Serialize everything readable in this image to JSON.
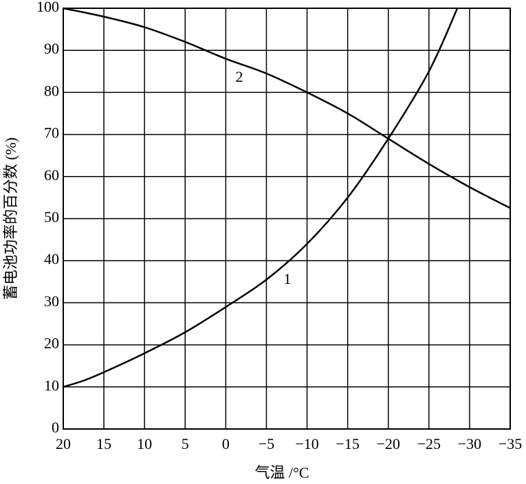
{
  "chart_data": {
    "type": "line",
    "x_label": "气温 /°C",
    "y_label": "蓄电池功率的百分数 (%)",
    "xlim": [
      20,
      -35
    ],
    "xticks": [
      20,
      15,
      10,
      5,
      0,
      {
        "value": -5,
        "label": "−5"
      },
      {
        "value": -10,
        "label": "−10"
      },
      {
        "value": -15,
        "label": "−15"
      },
      {
        "value": -20,
        "label": "−20"
      },
      {
        "value": -25,
        "label": "−25"
      },
      {
        "value": -30,
        "label": "−30"
      },
      {
        "value": -35,
        "label": "−35"
      }
    ],
    "ylim": [
      0,
      100
    ],
    "yticks": [
      0,
      10,
      20,
      30,
      40,
      50,
      60,
      70,
      80,
      90,
      100
    ],
    "grid": true,
    "series": [
      {
        "name": "1",
        "color": "#000000",
        "x": [
          20,
          17.5,
          15,
          10,
          5,
          0,
          -5,
          -10,
          -15,
          -20,
          -25,
          -28.5
        ],
        "values": [
          10,
          11.5,
          13.5,
          18,
          23,
          29,
          35.5,
          44,
          55,
          69,
          85,
          100
        ]
      },
      {
        "name": "2",
        "color": "#000000",
        "x": [
          20,
          15,
          10,
          5,
          0,
          -5,
          -10,
          -15,
          -20,
          -25,
          -30,
          -35
        ],
        "values": [
          100,
          98,
          95.5,
          92,
          88,
          84.5,
          80,
          75,
          69,
          63,
          57.5,
          52.5
        ]
      }
    ]
  }
}
